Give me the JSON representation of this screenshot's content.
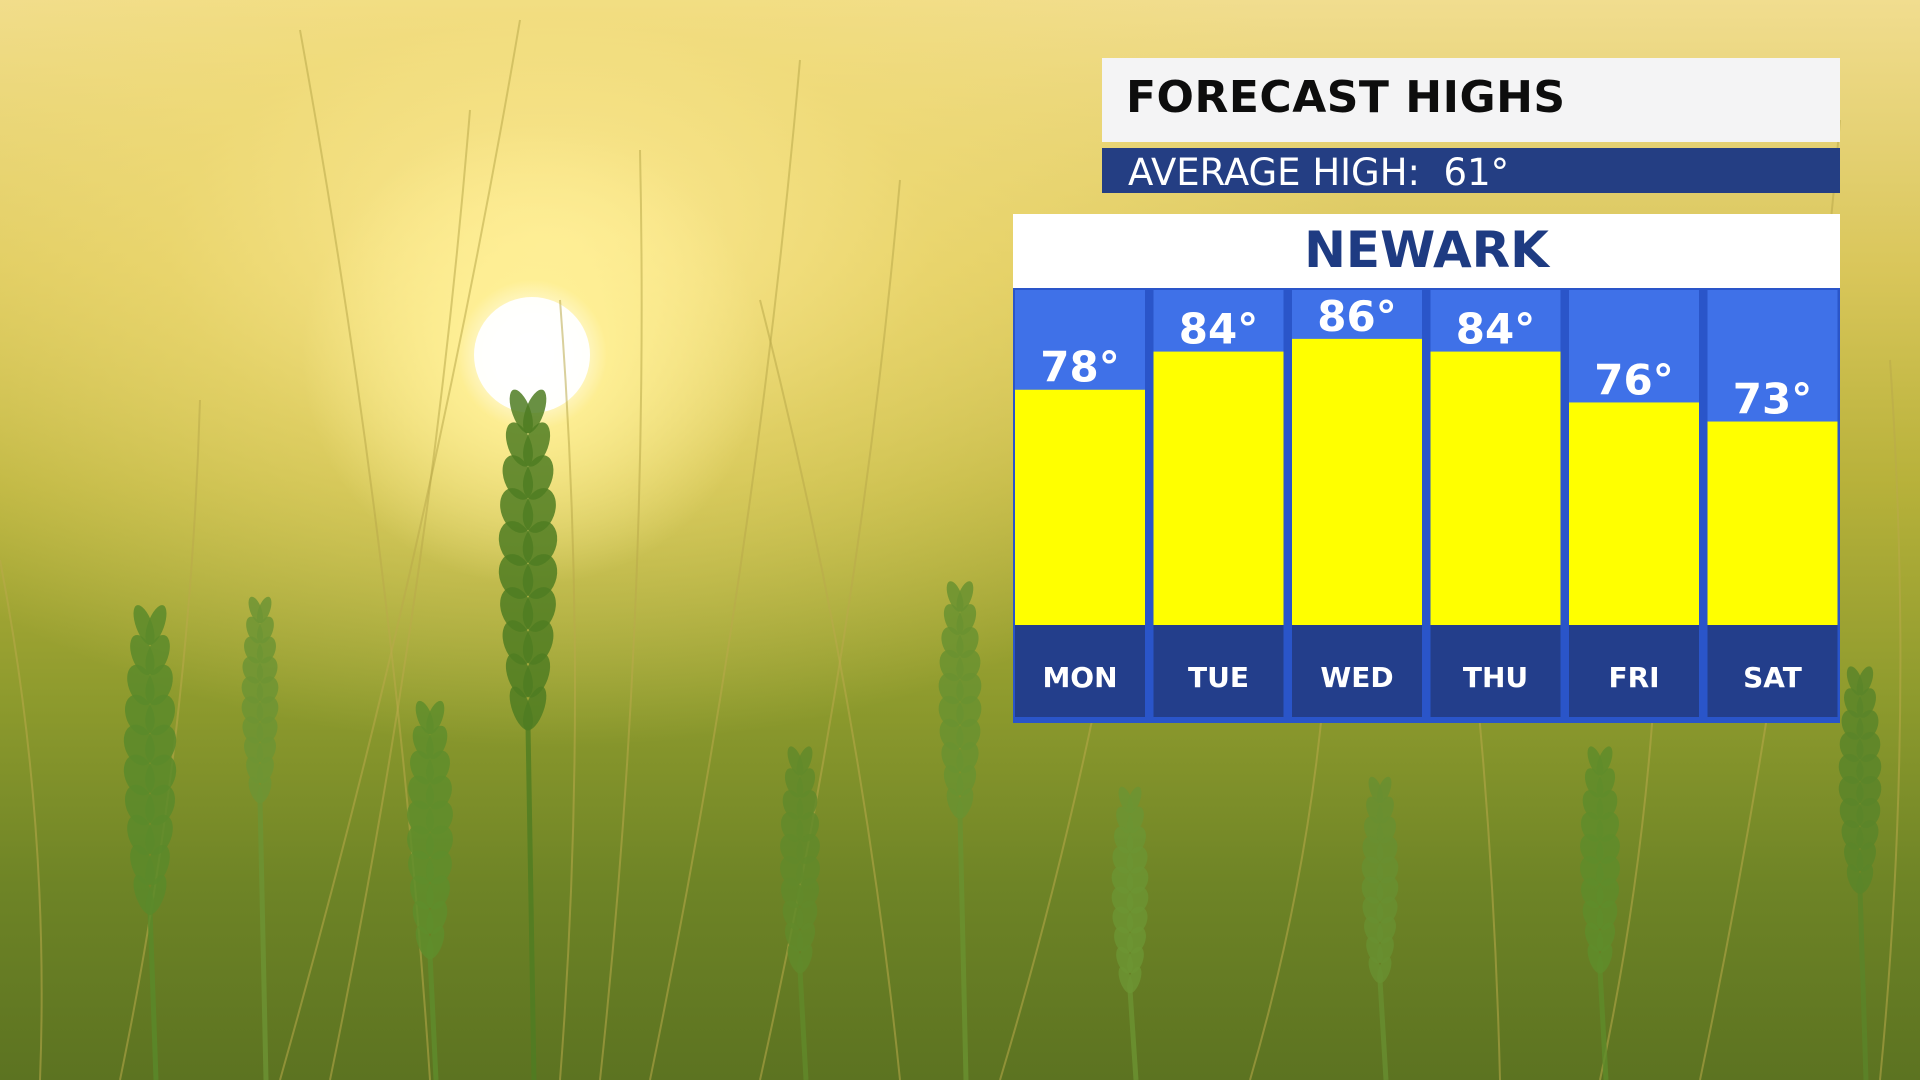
{
  "header": {
    "title": "FORECAST HIGHS",
    "average_high": "AVERAGE HIGH:  61°"
  },
  "colors": {
    "bar_fill": "#ffff00",
    "column_bg": "#3f71e8",
    "column_border": "#2a55c9",
    "day_label_bg": "#233e8b",
    "city_text": "#1e3b82",
    "avg_bar_bg": "#243e83"
  },
  "chart_data": {
    "type": "bar",
    "title": "NEWARK",
    "unit": "°",
    "categories": [
      "MON",
      "TUE",
      "WED",
      "THU",
      "FRI",
      "SAT"
    ],
    "values": [
      78,
      84,
      86,
      84,
      76,
      73
    ],
    "value_labels": [
      "78°",
      "84°",
      "86°",
      "84°",
      "76°",
      "73°"
    ],
    "ylim": [
      41,
      94
    ],
    "grid": false,
    "legend": "none"
  }
}
